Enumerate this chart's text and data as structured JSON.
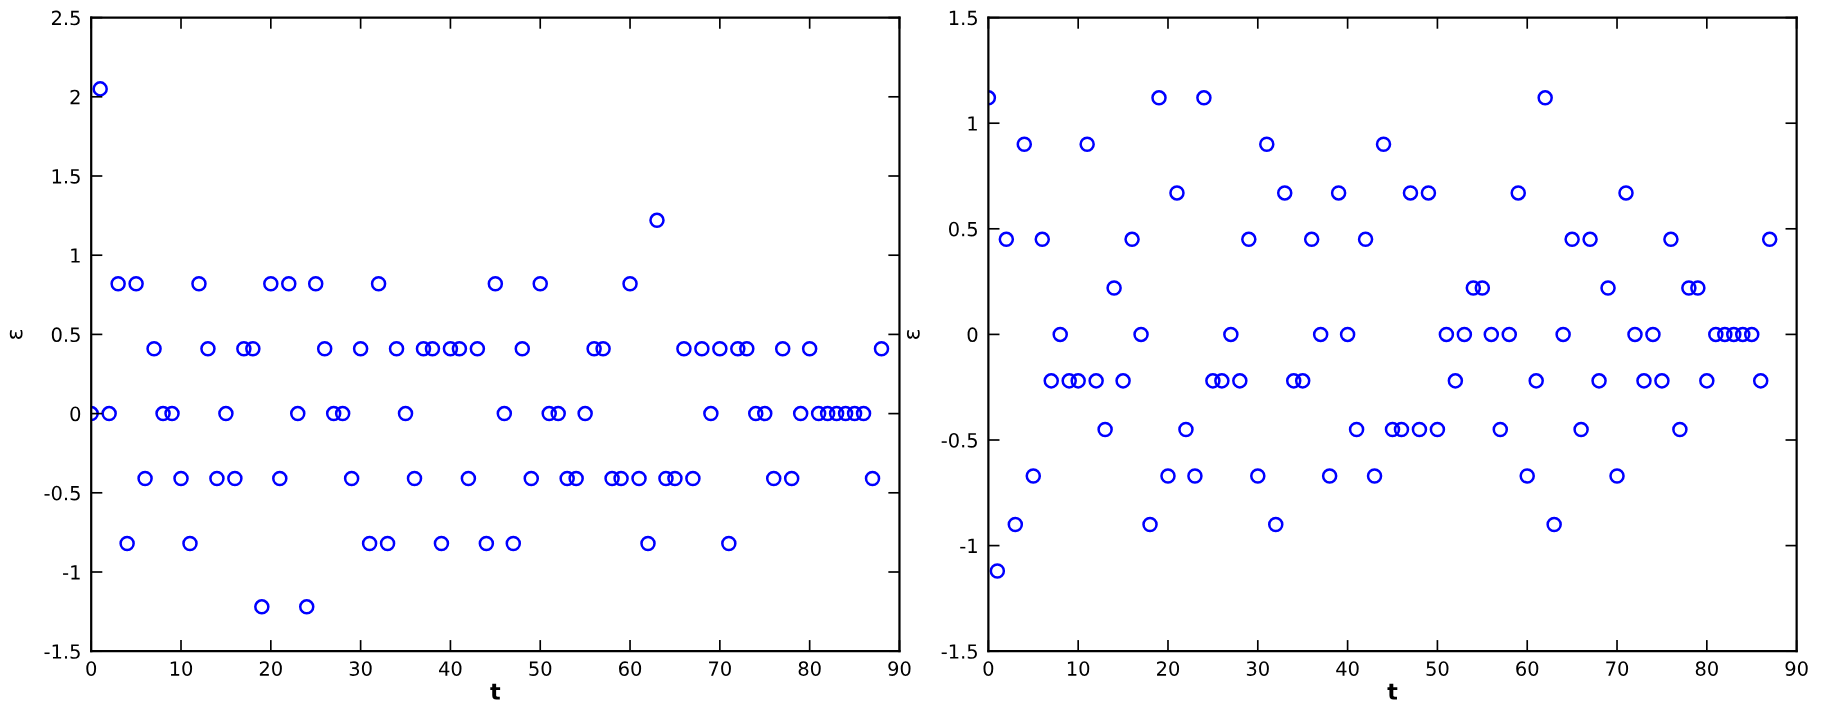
{
  "chart_data": [
    {
      "type": "scatter",
      "xlabel": "t",
      "ylabel": "ε",
      "marker": "circle",
      "grid": false,
      "xlim": [
        0,
        90
      ],
      "ylim": [
        -1.5,
        2.5
      ],
      "xticks": [
        0,
        10,
        20,
        30,
        40,
        50,
        60,
        70,
        80,
        90
      ],
      "yticks": [
        -1.5,
        -1,
        -0.5,
        0,
        0.5,
        1,
        1.5,
        2,
        2.5
      ],
      "series": [
        {
          "color": "#0000ff",
          "x": [
            0,
            1,
            2,
            3,
            4,
            5,
            6,
            7,
            8,
            9,
            10,
            11,
            12,
            13,
            14,
            15,
            16,
            17,
            18,
            19,
            20,
            21,
            22,
            23,
            24,
            25,
            26,
            27,
            28,
            29,
            30,
            31,
            32,
            33,
            34,
            35,
            36,
            37,
            38,
            39,
            40,
            41,
            42,
            43,
            44,
            45,
            46,
            47,
            48,
            49,
            50,
            51,
            52,
            53,
            54,
            55,
            56,
            57,
            58,
            59,
            60,
            61,
            62,
            63,
            64,
            65,
            66,
            67,
            68,
            69,
            70,
            71,
            72,
            73,
            74,
            75,
            76,
            77,
            78,
            79,
            80,
            81,
            82,
            83,
            84,
            85,
            86,
            87,
            88
          ],
          "values": [
            0,
            2.05,
            0,
            0.82,
            -0.82,
            0.82,
            -0.41,
            0.41,
            0,
            0,
            -0.41,
            -0.82,
            0.82,
            0.41,
            -0.41,
            0,
            -0.41,
            0.41,
            0.41,
            -1.22,
            0.82,
            -0.41,
            0.82,
            0,
            -1.22,
            0.82,
            0.41,
            0,
            0,
            -0.41,
            0.41,
            -0.82,
            0.82,
            -0.82,
            0.41,
            0,
            -0.41,
            0.41,
            0.41,
            -0.82,
            0.41,
            0.41,
            -0.41,
            0.41,
            -0.82,
            0.82,
            0,
            -0.82,
            0.41,
            -0.41,
            0.82,
            0,
            0,
            -0.41,
            -0.41,
            0,
            0.41,
            0.41,
            -0.41,
            -0.41,
            0.82,
            -0.41,
            -0.82,
            1.22,
            -0.41,
            -0.41,
            0.41,
            -0.41,
            0.41,
            0,
            0.41,
            -0.82,
            0.41,
            0.41,
            0,
            0,
            -0.41,
            0.41,
            -0.41,
            0,
            0.41,
            0,
            0,
            0,
            0,
            0,
            0,
            -0.41,
            0.41
          ]
        }
      ]
    },
    {
      "type": "scatter",
      "xlabel": "t",
      "ylabel": "ε",
      "marker": "circle",
      "grid": false,
      "xlim": [
        0,
        90
      ],
      "ylim": [
        -1.5,
        1.5
      ],
      "xticks": [
        0,
        10,
        20,
        30,
        40,
        50,
        60,
        70,
        80,
        90
      ],
      "yticks": [
        -1.5,
        -1,
        -0.5,
        0,
        0.5,
        1,
        1.5
      ],
      "series": [
        {
          "color": "#0000ff",
          "x": [
            0,
            1,
            2,
            3,
            4,
            5,
            6,
            7,
            8,
            9,
            10,
            11,
            12,
            13,
            14,
            15,
            16,
            17,
            18,
            19,
            20,
            21,
            22,
            23,
            24,
            25,
            26,
            27,
            28,
            29,
            30,
            31,
            32,
            33,
            34,
            35,
            36,
            37,
            38,
            39,
            40,
            41,
            42,
            43,
            44,
            45,
            46,
            47,
            48,
            49,
            50,
            51,
            52,
            53,
            54,
            55,
            56,
            57,
            58,
            59,
            60,
            61,
            62,
            63,
            64,
            65,
            66,
            67,
            68,
            69,
            70,
            71,
            72,
            73,
            74,
            75,
            76,
            77,
            78,
            79,
            80,
            81,
            82,
            83,
            84,
            85,
            86,
            87
          ],
          "values": [
            1.12,
            -1.12,
            0.45,
            -0.9,
            0.9,
            -0.67,
            0.45,
            -0.22,
            0,
            -0.22,
            -0.22,
            0.9,
            -0.22,
            -0.45,
            0.22,
            -0.22,
            0.45,
            0,
            -0.9,
            1.12,
            -0.67,
            0.67,
            -0.45,
            -0.67,
            1.12,
            -0.22,
            -0.22,
            0,
            -0.22,
            0.45,
            -0.67,
            0.9,
            -0.9,
            0.67,
            -0.22,
            -0.22,
            0.45,
            0,
            -0.67,
            0.67,
            0,
            -0.45,
            0.45,
            -0.67,
            0.9,
            -0.45,
            -0.45,
            0.67,
            -0.45,
            0.67,
            -0.45,
            0,
            -0.22,
            0,
            0.22,
            0.22,
            0,
            -0.45,
            0,
            0.67,
            -0.67,
            -0.22,
            1.12,
            -0.9,
            0,
            0.45,
            -0.45,
            0.45,
            -0.22,
            0.22,
            -0.67,
            0.67,
            0,
            -0.22,
            0,
            -0.22,
            0.45,
            -0.45,
            0.22,
            0.22,
            -0.22,
            0,
            0,
            0,
            0,
            0,
            -0.22,
            0.45
          ]
        }
      ]
    }
  ]
}
